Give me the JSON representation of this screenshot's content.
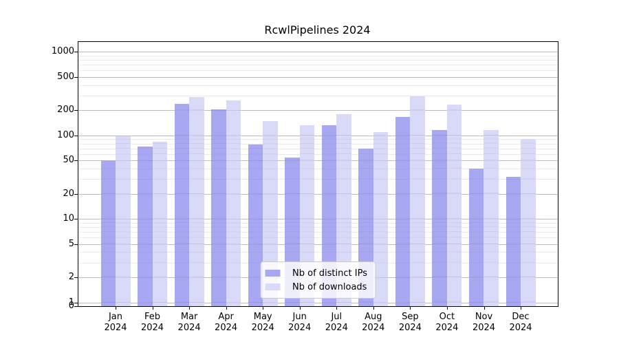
{
  "chart_data": {
    "type": "bar",
    "title": "RcwlPipelines 2024",
    "categories": [
      "Jan 2024",
      "Feb 2024",
      "Mar 2024",
      "Apr 2024",
      "May 2024",
      "Jun 2024",
      "Jul 2024",
      "Aug 2024",
      "Sep 2024",
      "Oct 2024",
      "Nov 2024",
      "Dec 2024"
    ],
    "series": [
      {
        "name": "Nb of distinct IPs",
        "color": "#a8a8f2",
        "values": [
          50,
          74,
          238,
          205,
          78,
          54,
          133,
          69,
          167,
          115,
          40,
          32
        ]
      },
      {
        "name": "Nb of downloads",
        "color": "#d9d9f8",
        "values": [
          98,
          84,
          288,
          263,
          149,
          132,
          179,
          110,
          293,
          232,
          115,
          90
        ]
      }
    ],
    "xlabel": "",
    "ylabel": "",
    "y_axis": {
      "scale": "log-with-zero",
      "tick_labels": [
        0,
        1,
        2,
        5,
        10,
        20,
        50,
        100,
        200,
        500,
        1000
      ],
      "ylim": [
        0,
        1300
      ]
    },
    "grid": true,
    "legend_position": "lower center"
  }
}
